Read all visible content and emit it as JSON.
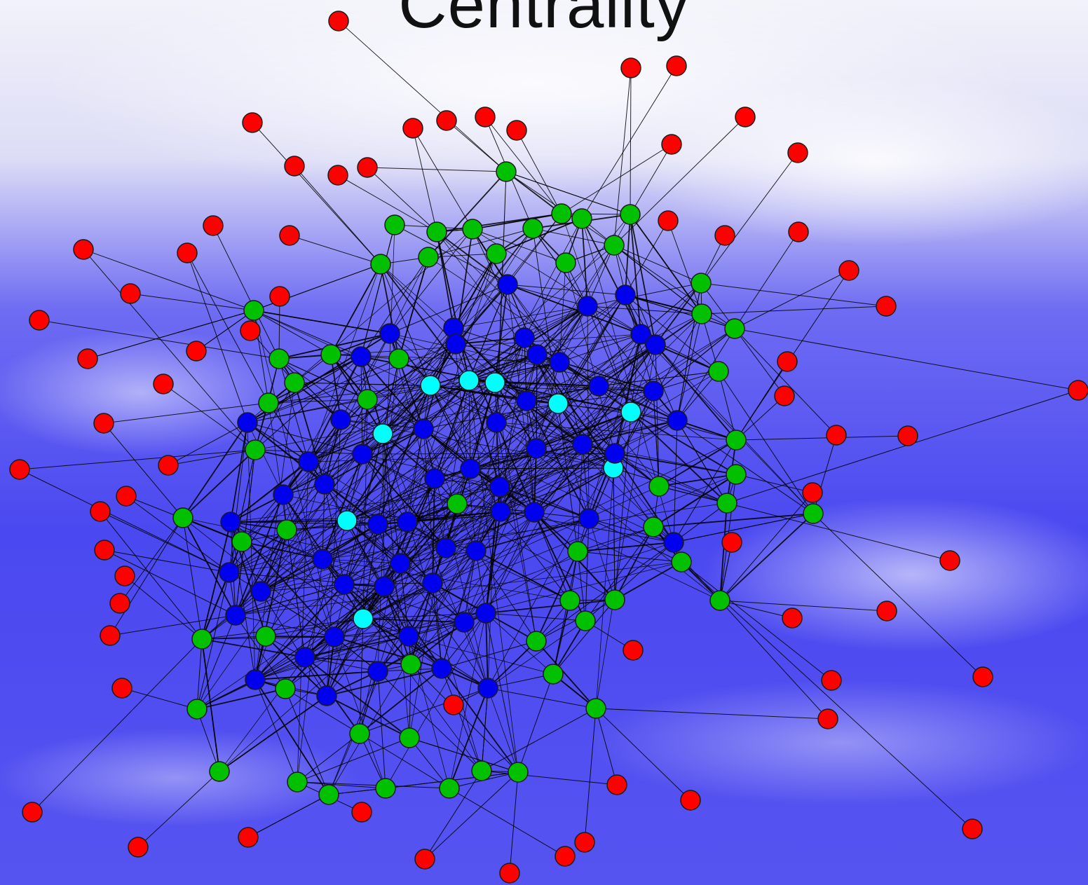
{
  "title": "Centrality",
  "colors": {
    "peripheral": "#ff0000",
    "intermediate": "#00c000",
    "central": "#0000ee",
    "most_central": "#00ffff",
    "edge": "#000000",
    "background_light": "#eeeef8",
    "background_dark": "#4a48f0"
  }
}
